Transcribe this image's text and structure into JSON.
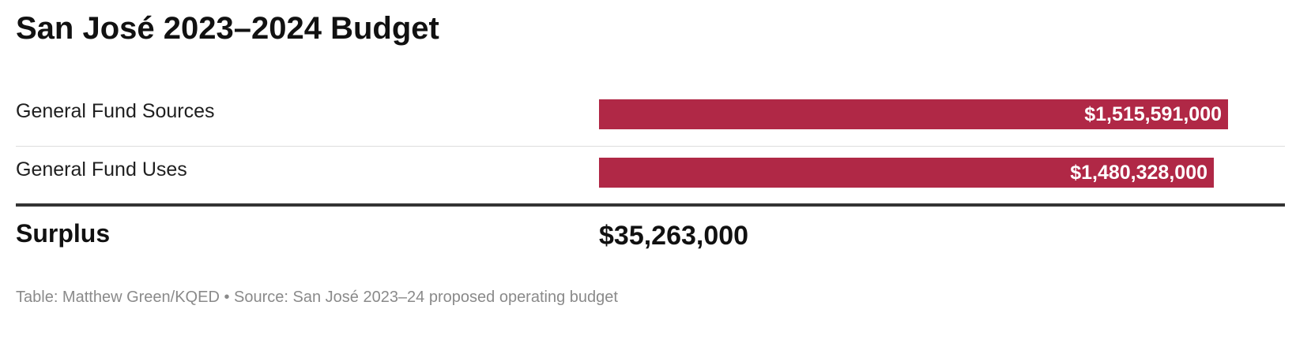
{
  "chart_data": {
    "type": "bar",
    "title": "San José 2023–2024 Budget",
    "categories": [
      "General Fund Sources",
      "General Fund Uses"
    ],
    "values": [
      1515591000,
      1480328000
    ],
    "value_labels": [
      "$1,515,591,000",
      "$1,480,328,000"
    ],
    "xlim": [
      0,
      1595000000
    ],
    "bar_color": "#b02846",
    "total": {
      "label": "Surplus",
      "value": 35263000,
      "value_label": "$35,263,000"
    }
  },
  "footer": {
    "credit": "Table: Matthew Green/KQED",
    "separator": " • ",
    "source": "Source: San José 2023–24 proposed operating budget"
  }
}
